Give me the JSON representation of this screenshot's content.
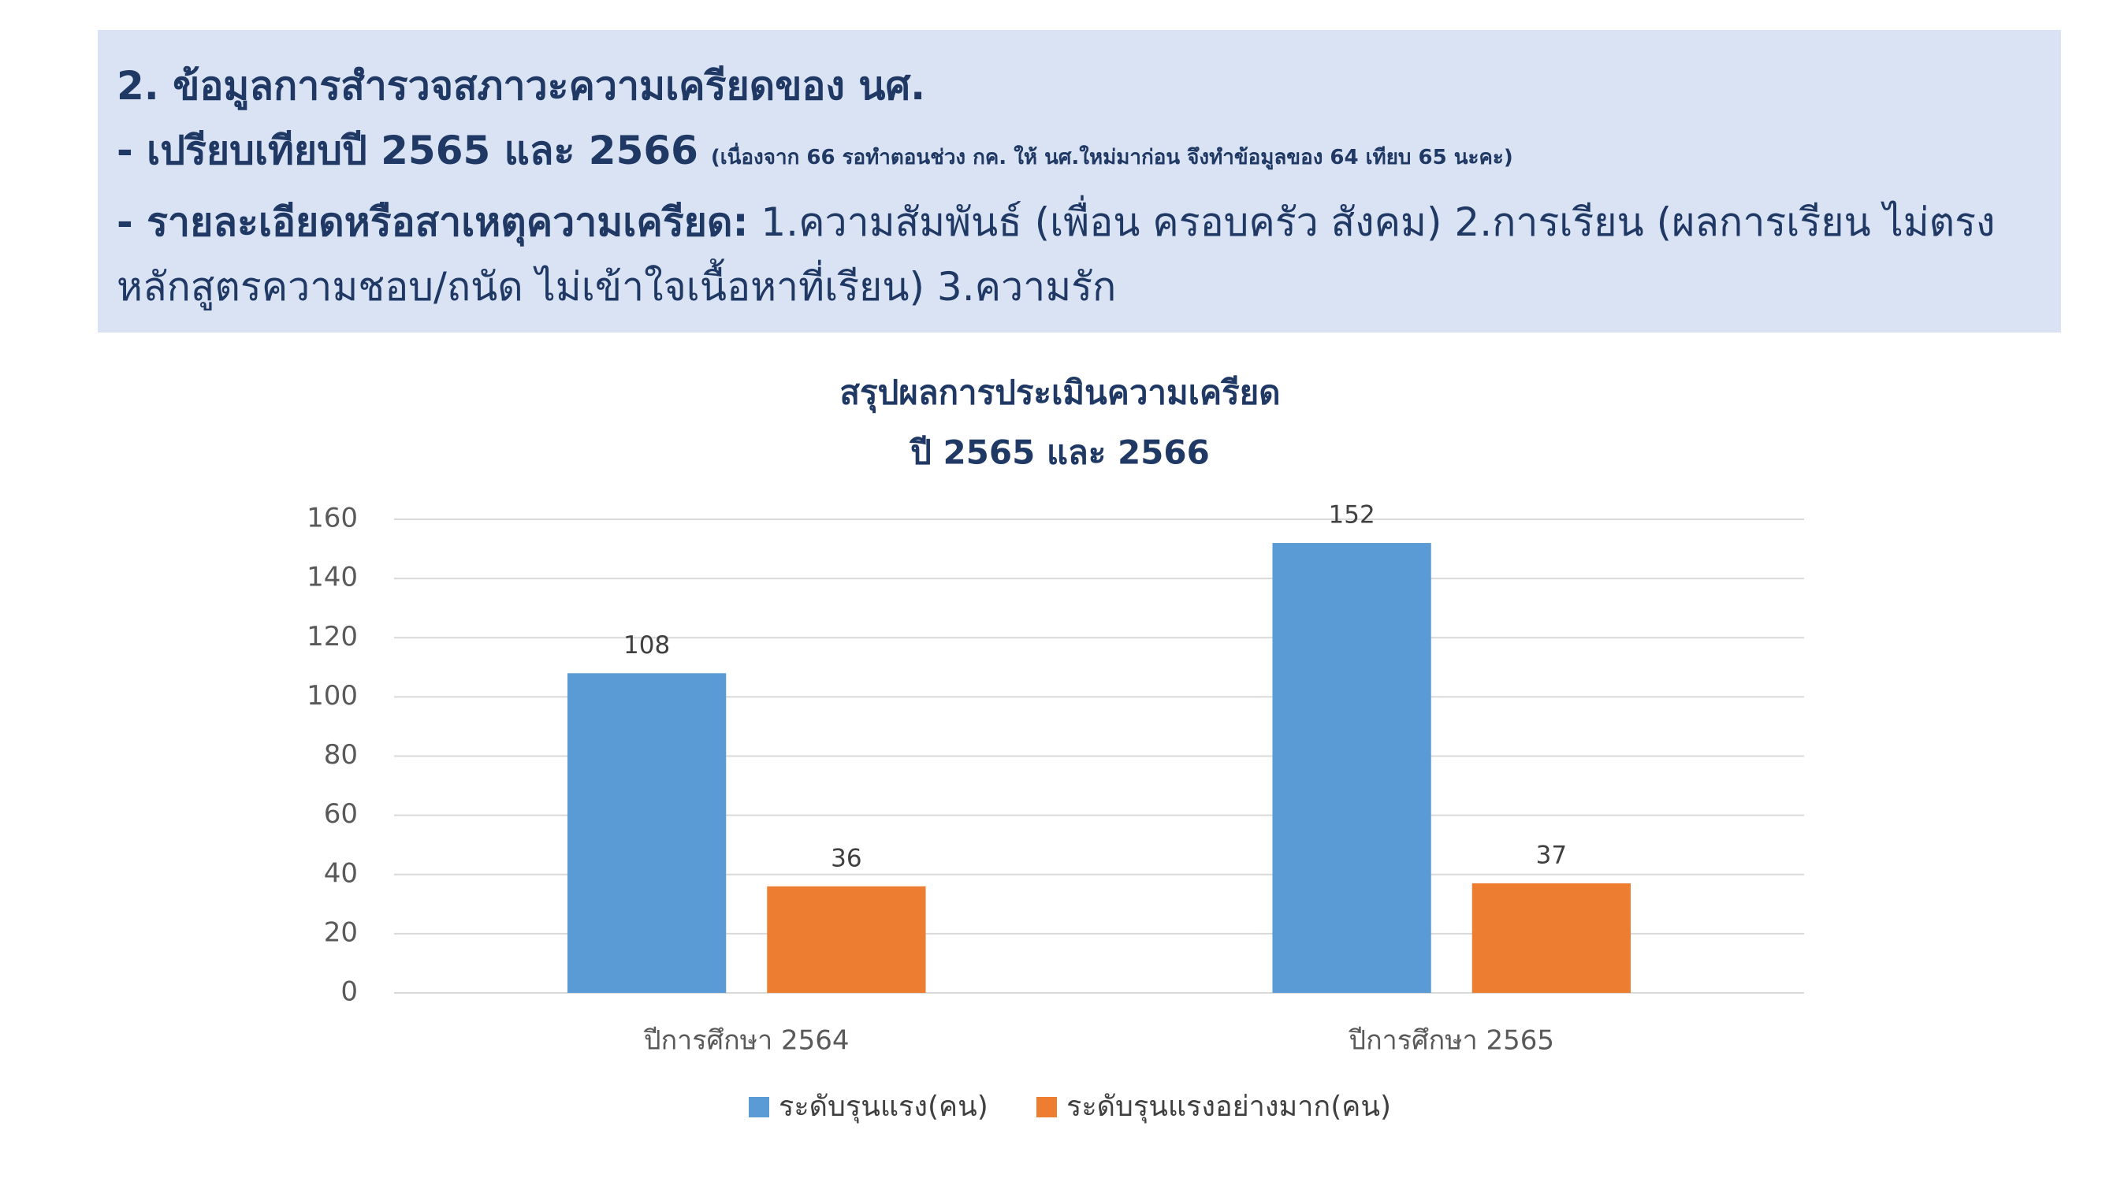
{
  "header": {
    "line1": "2. ข้อมูลการสำรวจสภาวะความเครียดของ นศ.",
    "line2": "- เปรียบเทียบปี 2565 และ 2566",
    "line2_note": "(เนื่องจาก 66 รอทำตอนช่วง กค. ให้ นศ.ใหม่มาก่อน จึงทำข้อมูลของ 64 เทียบ 65 นะคะ)",
    "line3_label": "- รายละเอียดหรือสาเหตุความเครียด:",
    "line3_text": "1.ความสัมพันธ์ (เพื่อน ครอบครัว สังคม) 2.การเรียน (ผลการเรียน ไม่ตรงหลักสูตรความชอบ/ถนัด ไม่เข้าใจเนื้อหาที่เรียน) 3.ความรัก"
  },
  "chart_data": {
    "type": "bar",
    "title": [
      "สรุปผลการประเมินความเครียด",
      "ปี 2565 และ 2566"
    ],
    "categories": [
      "ปีการศึกษา 2564",
      "ปีการศึกษา 2565"
    ],
    "series": [
      {
        "name": "ระดับรุนแรง(คน)",
        "color": "#5b9bd5",
        "values": [
          108,
          152
        ]
      },
      {
        "name": "ระดับรุนแรงอย่างมาก(คน)",
        "color": "#ed7d31",
        "values": [
          36,
          37
        ]
      }
    ],
    "ylim": [
      0,
      160
    ],
    "yticks": [
      0,
      20,
      40,
      60,
      80,
      100,
      120,
      140,
      160
    ],
    "grid": true,
    "legend": "bottom"
  }
}
